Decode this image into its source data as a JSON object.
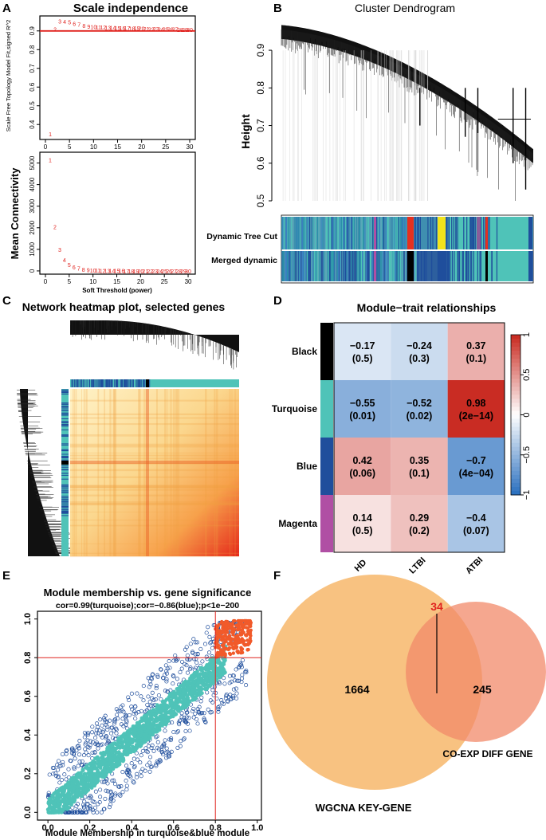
{
  "figure": {
    "panels": {
      "A": {
        "label": "A"
      },
      "B": {
        "label": "B"
      },
      "C": {
        "label": "C"
      },
      "D": {
        "label": "D"
      },
      "E": {
        "label": "E"
      },
      "F": {
        "label": "F"
      }
    },
    "colors": {
      "turquoise": "#4fc3b8",
      "blue": "#1f4e9c",
      "black": "#000000",
      "magenta": "#b04fa4",
      "red": "#e0231f",
      "orange_venn": "#f7b76b",
      "salmon_venn": "#f28a6a",
      "heat_low": "#fff2b5",
      "heat_high": "#e5281a"
    }
  },
  "chart_data": [
    {
      "id": "A1",
      "type": "scatter",
      "title": "Scale independence",
      "xlabel": "",
      "ylabel": "Scale Free Topology Model Fit,signed R^2",
      "xlim": [
        0,
        30
      ],
      "ylim": [
        0.32,
        0.98
      ],
      "xticks": [
        "0",
        "5",
        "10",
        "15",
        "20",
        "25",
        "30"
      ],
      "yticks": [
        "0.4",
        "0.5",
        "0.6",
        "0.7",
        "0.8",
        "0.9"
      ],
      "hline": 0.9,
      "points": [
        {
          "x": 1,
          "y": 0.35,
          "label": "1"
        },
        {
          "x": 2,
          "y": 0.91,
          "label": "2"
        },
        {
          "x": 3,
          "y": 0.952,
          "label": "3"
        },
        {
          "x": 4,
          "y": 0.95,
          "label": "4"
        },
        {
          "x": 5,
          "y": 0.948,
          "label": "5"
        },
        {
          "x": 6,
          "y": 0.94,
          "label": "6"
        },
        {
          "x": 7,
          "y": 0.935,
          "label": "7"
        },
        {
          "x": 8,
          "y": 0.928,
          "label": "8"
        },
        {
          "x": 9,
          "y": 0.925,
          "label": "9"
        },
        {
          "x": 10,
          "y": 0.922,
          "label": "10"
        },
        {
          "x": 11,
          "y": 0.92,
          "label": "11"
        },
        {
          "x": 12,
          "y": 0.92,
          "label": "12"
        },
        {
          "x": 13,
          "y": 0.918,
          "label": "13"
        },
        {
          "x": 14,
          "y": 0.918,
          "label": "14"
        },
        {
          "x": 15,
          "y": 0.917,
          "label": "15"
        },
        {
          "x": 16,
          "y": 0.916,
          "label": "16"
        },
        {
          "x": 17,
          "y": 0.916,
          "label": "17"
        },
        {
          "x": 18,
          "y": 0.915,
          "label": "18"
        },
        {
          "x": 19,
          "y": 0.917,
          "label": "19"
        },
        {
          "x": 20,
          "y": 0.913,
          "label": "20"
        },
        {
          "x": 21,
          "y": 0.912,
          "label": "21"
        },
        {
          "x": 22,
          "y": 0.91,
          "label": "22"
        },
        {
          "x": 23,
          "y": 0.911,
          "label": "23"
        },
        {
          "x": 24,
          "y": 0.91,
          "label": "24"
        },
        {
          "x": 25,
          "y": 0.91,
          "label": "25"
        },
        {
          "x": 26,
          "y": 0.909,
          "label": "26"
        },
        {
          "x": 27,
          "y": 0.909,
          "label": "27"
        },
        {
          "x": 28,
          "y": 0.908,
          "label": "28"
        },
        {
          "x": 29,
          "y": 0.908,
          "label": "29"
        },
        {
          "x": 30,
          "y": 0.907,
          "label": "30"
        }
      ]
    },
    {
      "id": "A2",
      "type": "scatter",
      "title": "",
      "xlabel": "Soft Threshold (power)",
      "ylabel": "Mean Connectivity",
      "xlim": [
        0,
        31
      ],
      "ylim": [
        -150,
        5500
      ],
      "xticks": [
        "0",
        "5",
        "10",
        "15",
        "20",
        "25",
        "30"
      ],
      "yticks": [
        "0",
        "1000",
        "2000",
        "3000",
        "4000",
        "5000"
      ],
      "points": [
        {
          "x": 1,
          "y": 5150,
          "label": "1"
        },
        {
          "x": 2,
          "y": 2050,
          "label": "2"
        },
        {
          "x": 3,
          "y": 1000,
          "label": "3"
        },
        {
          "x": 4,
          "y": 520,
          "label": "4"
        },
        {
          "x": 5,
          "y": 300,
          "label": "5"
        },
        {
          "x": 6,
          "y": 190,
          "label": "6"
        },
        {
          "x": 7,
          "y": 120,
          "label": "7"
        },
        {
          "x": 8,
          "y": 80,
          "label": "8"
        },
        {
          "x": 9,
          "y": 55,
          "label": "9"
        },
        {
          "x": 10,
          "y": 40,
          "label": "10"
        },
        {
          "x": 11,
          "y": 30,
          "label": "11"
        },
        {
          "x": 12,
          "y": 22,
          "label": "12"
        },
        {
          "x": 13,
          "y": 17,
          "label": "13"
        },
        {
          "x": 14,
          "y": 13,
          "label": "14"
        },
        {
          "x": 15,
          "y": 10,
          "label": "15"
        },
        {
          "x": 16,
          "y": 8,
          "label": "16"
        },
        {
          "x": 17,
          "y": 6,
          "label": "17"
        },
        {
          "x": 18,
          "y": 5,
          "label": "18"
        },
        {
          "x": 19,
          "y": 4,
          "label": "19"
        },
        {
          "x": 20,
          "y": 3,
          "label": "20"
        },
        {
          "x": 21,
          "y": 3,
          "label": "21"
        },
        {
          "x": 22,
          "y": 2,
          "label": "22"
        },
        {
          "x": 23,
          "y": 2,
          "label": "23"
        },
        {
          "x": 24,
          "y": 2,
          "label": "24"
        },
        {
          "x": 25,
          "y": 1,
          "label": "25"
        },
        {
          "x": 26,
          "y": 1,
          "label": "26"
        },
        {
          "x": 27,
          "y": 1,
          "label": "27"
        },
        {
          "x": 28,
          "y": 1,
          "label": "28"
        },
        {
          "x": 29,
          "y": 1,
          "label": "29"
        },
        {
          "x": 30,
          "y": 1,
          "label": "30"
        }
      ]
    },
    {
      "id": "B",
      "type": "dendrogram",
      "title": "Cluster Dendrogram",
      "ylabel": "Height",
      "ylim": [
        0.5,
        0.97
      ],
      "yticks": [
        "0.5",
        "0.6",
        "0.7",
        "0.8",
        "0.9"
      ],
      "color_rows": [
        "Dynamic Tree Cut",
        "Merged dynamic"
      ]
    },
    {
      "id": "C",
      "type": "heatmap",
      "title": "Network heatmap plot, selected genes"
    },
    {
      "id": "D",
      "type": "heatmap",
      "title": "Module−trait relationships",
      "rows": [
        "Black",
        "Turquoise",
        "Blue",
        "Magenta"
      ],
      "columns": [
        "HD",
        "LTBI",
        "ATBI"
      ],
      "values": [
        [
          -0.17,
          -0.24,
          0.37
        ],
        [
          -0.55,
          -0.52,
          0.98
        ],
        [
          0.42,
          0.35,
          -0.7
        ],
        [
          0.14,
          0.29,
          -0.4
        ]
      ],
      "cells": [
        [
          "−0.17",
          "−0.24",
          "0.37"
        ],
        [
          "−0.55",
          "−0.52",
          "0.98"
        ],
        [
          "0.42",
          "0.35",
          "−0.7"
        ],
        [
          "0.14",
          "0.29",
          "−0.4"
        ]
      ],
      "pvalues": [
        [
          "(0.5)",
          "(0.3)",
          "(0.1)"
        ],
        [
          "(0.01)",
          "(0.02)",
          "(2e−14)"
        ],
        [
          "(0.06)",
          "(0.1)",
          "(4e−04)"
        ],
        [
          "(0.5)",
          "(0.2)",
          "(0.07)"
        ]
      ],
      "colorbar_ticks": [
        "1",
        "0.5",
        "0",
        "−0.5",
        "−1"
      ],
      "colorbar_values": [
        1,
        0.5,
        0,
        -0.5,
        -1
      ],
      "range": [
        -1,
        1
      ]
    },
    {
      "id": "E",
      "type": "scatter",
      "title": "Module membership vs. gene significance",
      "subtitle": "cor=0.99(turquoise);cor=−0.86(blue);p<1e−200",
      "xlabel": "Module Membership in turquoise&blue module",
      "ylabel": "",
      "xlim": [
        -0.05,
        1.02
      ],
      "ylim": [
        -0.04,
        1.04
      ],
      "xticks": [
        "0.0",
        "0.2",
        "0.4",
        "0.6",
        "0.8",
        "1.0"
      ],
      "yticks": [
        "0.0",
        "0.2",
        "0.4",
        "0.6",
        "0.8",
        "1.0"
      ],
      "threshold_x": 0.8,
      "threshold_y": 0.8
    },
    {
      "id": "F",
      "type": "venn",
      "sets": [
        {
          "name": "WGCNA KEY-GENE",
          "only": "1664"
        },
        {
          "name": "CO-EXP DIFF GENE",
          "only": "245"
        }
      ],
      "intersection": "34"
    }
  ]
}
